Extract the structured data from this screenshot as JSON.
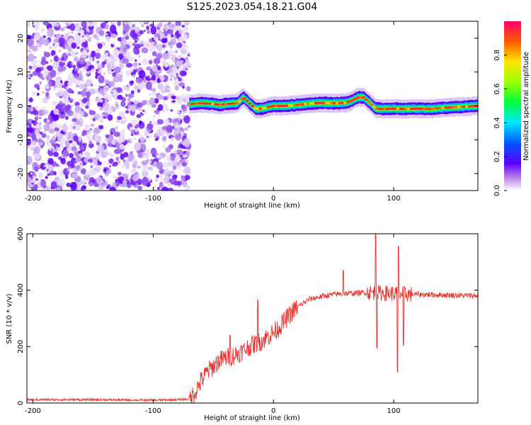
{
  "figure_title": "S125.2023.054.18.21.G04",
  "chart_data": [
    {
      "type": "heatmap",
      "title": "",
      "xlabel": "Height of straight line (km)",
      "ylabel": "Frequency (Hz)",
      "xlim": [
        -205,
        170
      ],
      "ylim": [
        -25,
        25
      ],
      "xticks": [
        -200,
        -100,
        0,
        100
      ],
      "yticks": [
        -20,
        -10,
        0,
        10,
        20
      ],
      "grid": false,
      "colorbar": {
        "label": "Normalized spectral amplitude",
        "range": [
          0,
          1
        ],
        "ticks": [
          "0.0",
          "0.2",
          "0.4",
          "0.6",
          "0.8"
        ]
      },
      "noise_region_km": [
        -205,
        -70
      ],
      "signal_ridge": {
        "x": [
          -70,
          -60,
          -50,
          -45,
          -40,
          -30,
          -25,
          -20,
          -15,
          -10,
          0,
          10,
          20,
          30,
          40,
          50,
          60,
          65,
          70,
          75,
          80,
          85,
          90,
          100,
          110,
          120,
          130,
          140,
          150,
          160,
          170
        ],
        "y": [
          0.5,
          0.8,
          0.6,
          0.3,
          0.5,
          0.8,
          2.5,
          0.8,
          -0.8,
          -0.8,
          0,
          0,
          0.3,
          0.7,
          0.9,
          0.8,
          0.9,
          1.5,
          2.5,
          2.5,
          1.0,
          -0.8,
          -0.9,
          -0.8,
          -0.9,
          -0.8,
          -0.9,
          -0.6,
          -0.4,
          -0.2,
          0
        ]
      }
    },
    {
      "type": "line",
      "title": "",
      "xlabel": "Height of straight line (km)",
      "ylabel": "SNR (10 * v/v)",
      "xlim": [
        -205,
        170
      ],
      "ylim": [
        0,
        600
      ],
      "xticks": [
        -200,
        -100,
        0,
        100
      ],
      "yticks": [
        0,
        200,
        400,
        600
      ],
      "grid": false,
      "series_color": "#e8302b",
      "series": [
        {
          "x": [
            -205,
            -150,
            -100,
            -80,
            -70,
            -65,
            -60,
            -55,
            -50,
            -45,
            -40,
            -35,
            -30,
            -25,
            -20,
            -15,
            -10,
            -5,
            0,
            5,
            10,
            15,
            20,
            25,
            30,
            40,
            50,
            60,
            70,
            80,
            90,
            100,
            110,
            120,
            130,
            140,
            150,
            160,
            170
          ],
          "y": [
            12,
            12,
            10,
            12,
            14,
            40,
            80,
            110,
            130,
            150,
            160,
            165,
            175,
            185,
            200,
            210,
            220,
            235,
            250,
            270,
            295,
            320,
            340,
            355,
            368,
            378,
            385,
            388,
            390,
            392,
            390,
            388,
            386,
            385,
            384,
            383,
            382,
            381,
            380
          ]
        }
      ],
      "spikes": [
        {
          "x": -36,
          "y": 240
        },
        {
          "x": -13,
          "y": 365
        },
        {
          "x": 58,
          "y": 470
        },
        {
          "x": 85,
          "y": 600
        },
        {
          "x": 86,
          "y": 195
        },
        {
          "x": 104,
          "y": 555
        },
        {
          "x": 103,
          "y": 110
        },
        {
          "x": 108,
          "y": 205
        }
      ]
    }
  ]
}
